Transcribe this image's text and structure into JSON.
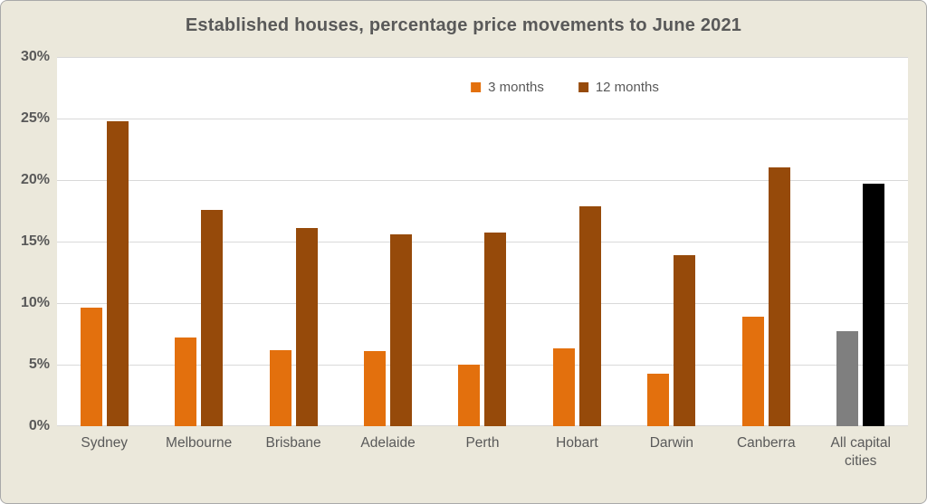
{
  "title": "Established houses, percentage price movements to June 2021",
  "colors": {
    "background": "#ebe8db",
    "plot_background": "#ffffff",
    "gridline": "#d9d9d9",
    "text": "#595959",
    "series_3_months": "#e3700d",
    "series_12_months": "#964a0a",
    "all_capital_3_months": "#7f7f7f",
    "all_capital_12_months": "#000000"
  },
  "y_axis": {
    "ticks": [
      "30%",
      "25%",
      "20%",
      "15%",
      "10%",
      "5%",
      "0%"
    ],
    "min": 0,
    "max": 30
  },
  "legend": [
    {
      "label": "3 months",
      "color": "#e3700d"
    },
    {
      "label": "12 months",
      "color": "#964a0a"
    }
  ],
  "chart_data": {
    "type": "bar",
    "title": "Established houses, percentage price movements to June 2021",
    "categories": [
      "Sydney",
      "Melbourne",
      "Brisbane",
      "Adelaide",
      "Perth",
      "Hobart",
      "Darwin",
      "Canberra",
      "All capital cities"
    ],
    "series": [
      {
        "name": "3 months",
        "color": "#e3700d",
        "values": [
          9.6,
          7.2,
          6.2,
          6.1,
          5.0,
          6.3,
          4.3,
          8.9,
          7.7
        ]
      },
      {
        "name": "12 months",
        "color": "#964a0a",
        "values": [
          24.8,
          17.6,
          16.1,
          15.6,
          15.7,
          17.9,
          13.9,
          21.0,
          19.7
        ]
      }
    ],
    "color_overrides": {
      "8": [
        "#7f7f7f",
        "#000000"
      ]
    },
    "xlabel": "",
    "ylabel": "",
    "ylim": [
      0,
      30
    ],
    "y_tick_step": 5,
    "grid": true,
    "legend_position": "top-center-inside"
  }
}
